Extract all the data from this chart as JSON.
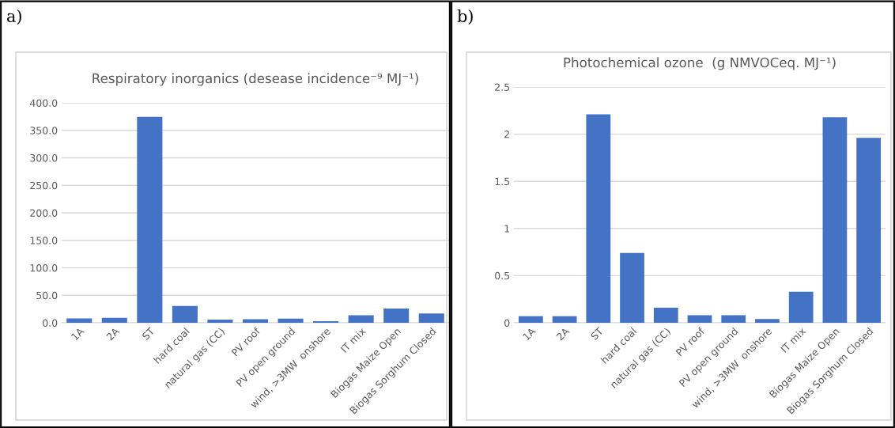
{
  "chart_data": [
    {
      "type": "bar",
      "title": "Respiratory inorganics (desease incidence⁻⁹ MJ⁻¹)",
      "annotations": [
        "a)"
      ],
      "categories": [
        "1A",
        "2A",
        "ST",
        "hard coal",
        "natural gas (CC)",
        "PV roof",
        "PV open ground",
        "wind, >3MW  onshore",
        "IT mix",
        "Biogas Maize Open",
        "Biogas Sorghum Closed"
      ],
      "values": [
        8,
        9,
        374.5,
        30.6,
        5.6,
        6.6,
        7.7,
        3,
        13.8,
        26,
        16.8
      ],
      "color": "#4472c4",
      "ylim": [
        0,
        400
      ],
      "yticks": [
        {
          "value": 0,
          "label": "0.0"
        },
        {
          "value": 50,
          "label": "50.0"
        },
        {
          "value": 100,
          "label": "100.0"
        },
        {
          "value": 150,
          "label": "150.0"
        },
        {
          "value": 200,
          "label": "200.0"
        },
        {
          "value": 250,
          "label": "250.0"
        },
        {
          "value": 300,
          "label": "300.0"
        },
        {
          "value": 350,
          "label": "350.0"
        },
        {
          "value": 400,
          "label": "400.0"
        }
      ],
      "grid": "y"
    },
    {
      "type": "bar",
      "title": "Photochemical ozone  (g NMVOCeq. MJ⁻¹)",
      "annotations": [
        "b)"
      ],
      "categories": [
        "1A",
        "2A",
        "ST",
        "hard coal",
        "natural gas (CC)",
        "PV roof",
        "PV open ground",
        "wind, >3MW  onshore",
        "IT mix",
        "Biogas Maize Open",
        "Biogas Sorghum Closed"
      ],
      "values": [
        0.07,
        0.07,
        2.21,
        0.74,
        0.16,
        0.08,
        0.08,
        0.04,
        0.33,
        2.18,
        1.96
      ],
      "color": "#4472c4",
      "ylim": [
        0,
        2.5
      ],
      "yticks": [
        0,
        0.5,
        1,
        1.5,
        2,
        2.5
      ],
      "grid": "y"
    }
  ]
}
